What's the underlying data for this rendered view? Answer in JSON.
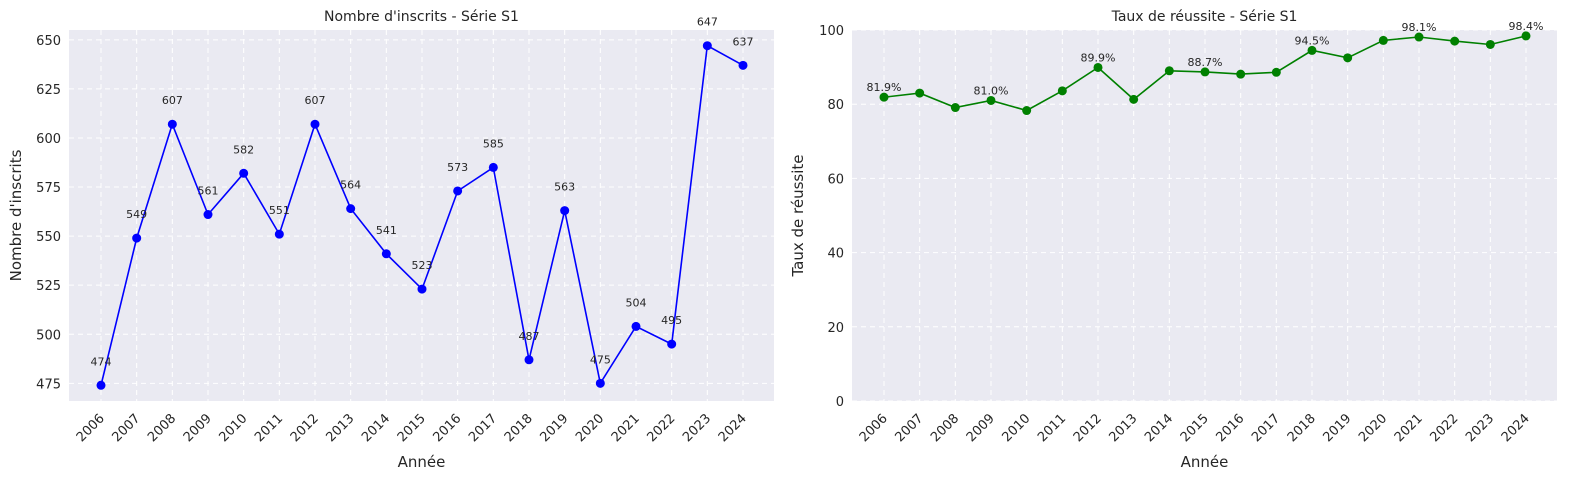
{
  "chart_data": [
    {
      "type": "line",
      "title": "Nombre d'inscrits - Série S1",
      "xlabel": "Année",
      "ylabel": "Nombre d'inscrits",
      "color": "#0000ff",
      "categories": [
        "2006",
        "2007",
        "2008",
        "2009",
        "2010",
        "2011",
        "2012",
        "2013",
        "2014",
        "2015",
        "2016",
        "2017",
        "2018",
        "2019",
        "2020",
        "2021",
        "2022",
        "2023",
        "2024"
      ],
      "values": [
        474,
        549,
        607,
        561,
        582,
        551,
        607,
        564,
        541,
        523,
        573,
        585,
        487,
        563,
        475,
        504,
        495,
        647,
        637
      ],
      "labels": [
        "474",
        "549",
        "607",
        "561",
        "582",
        "551",
        "607",
        "564",
        "541",
        "523",
        "573",
        "585",
        "487",
        "563",
        "475",
        "504",
        "495",
        "647",
        "637"
      ],
      "ylim": [
        466,
        655
      ],
      "yticks": [
        475,
        500,
        525,
        550,
        575,
        600,
        625,
        650
      ],
      "grid": true
    },
    {
      "type": "line",
      "title": "Taux de réussite - Série S1",
      "xlabel": "Année",
      "ylabel": "Taux de réussite",
      "color": "#008000",
      "categories": [
        "2006",
        "2007",
        "2008",
        "2009",
        "2010",
        "2011",
        "2012",
        "2013",
        "2014",
        "2015",
        "2016",
        "2017",
        "2018",
        "2019",
        "2020",
        "2021",
        "2022",
        "2023",
        "2024"
      ],
      "values": [
        81.9,
        83.0,
        79.1,
        81.0,
        78.3,
        83.6,
        89.9,
        81.3,
        89.0,
        88.7,
        88.1,
        88.6,
        94.5,
        92.5,
        97.2,
        98.1,
        97.0,
        96.1,
        98.4
      ],
      "labels": [
        "81.9%",
        "",
        "",
        "81.0%",
        "",
        "",
        "89.9%",
        "",
        "",
        "88.7%",
        "",
        "",
        "94.5%",
        "",
        "",
        "98.1%",
        "",
        "",
        "98.4%"
      ],
      "ylim": [
        0,
        100
      ],
      "yticks": [
        0,
        20,
        40,
        60,
        80,
        100
      ],
      "grid": true
    }
  ]
}
